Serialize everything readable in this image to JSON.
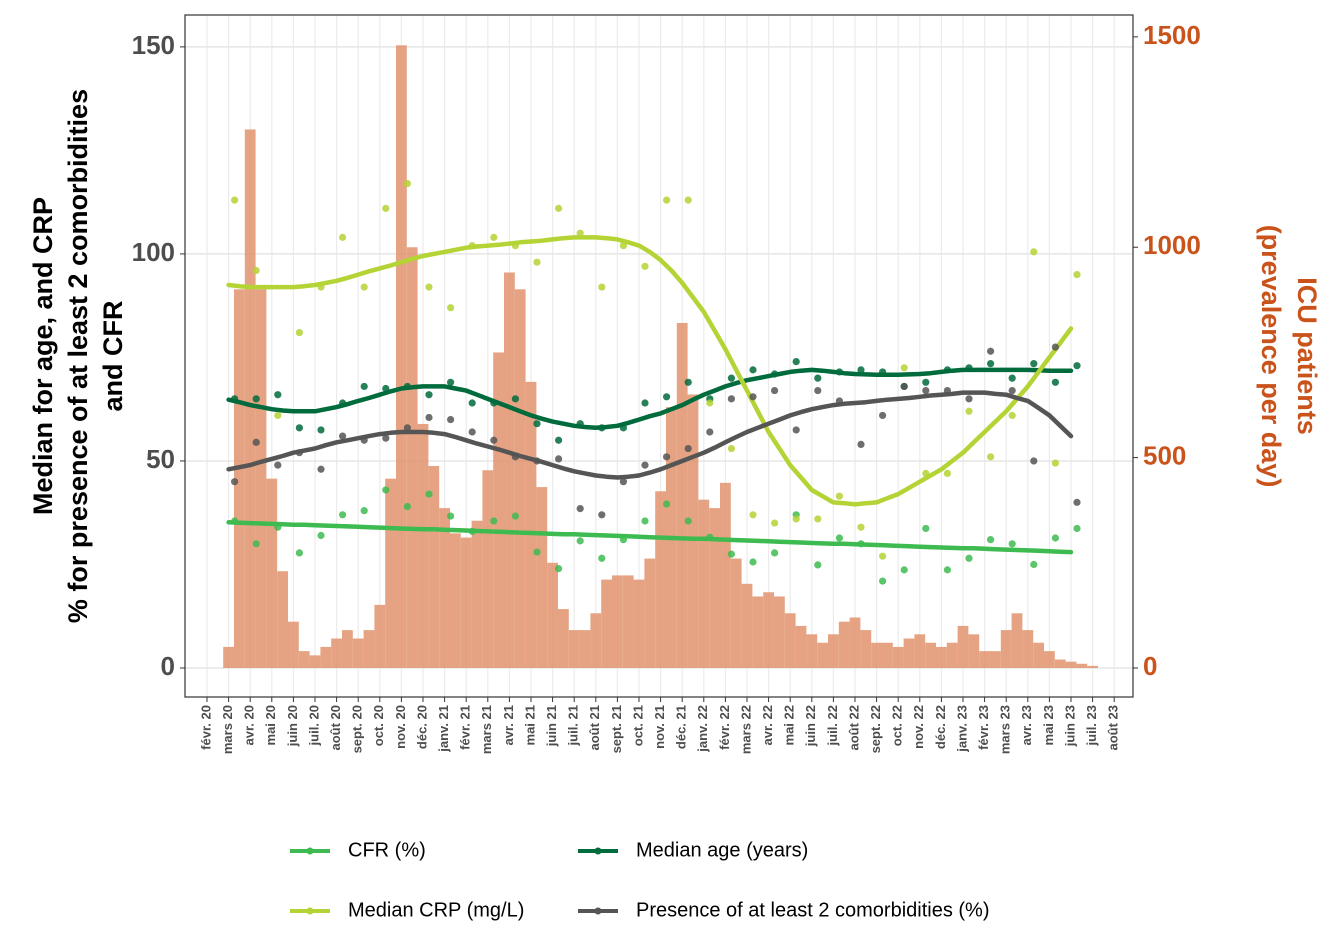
{
  "chart_data": {
    "type": "combo",
    "ylabel": [
      "Median for age, and CRP",
      "% for presence of at least 2 comorbidities",
      "and CFR"
    ],
    "y2label": [
      "ICU patients",
      "(prevalence per day)"
    ],
    "categories": [
      "févr. 20",
      null,
      "mars 20",
      null,
      "avr. 20",
      null,
      "mai 20",
      null,
      "juin 20",
      null,
      "juil. 20",
      null,
      "août 20",
      null,
      "sept. 20",
      null,
      "oct. 20",
      null,
      "nov. 20",
      null,
      "déc. 20",
      null,
      "janv. 21",
      null,
      "févr. 21",
      null,
      "mars 21",
      null,
      "avr. 21",
      null,
      "mai 21",
      null,
      "juin 21",
      null,
      "juil. 21",
      null,
      "août 21",
      null,
      "sept. 21",
      null,
      "oct. 21",
      null,
      "nov. 21",
      null,
      "déc. 21",
      null,
      "janv. 22",
      null,
      "févr. 22",
      null,
      "mars 22",
      null,
      "avr. 22",
      null,
      "mai 22",
      null,
      "juin 22",
      null,
      "juil. 22",
      null,
      "août 22",
      null,
      "sept. 22",
      null,
      "oct. 22",
      null,
      "nov. 22",
      null,
      "déc. 22",
      null,
      "janv. 23",
      null,
      "févr. 23",
      null,
      "mars 23",
      null,
      "avr. 23",
      null,
      "mai 23",
      null,
      "juin 23",
      null,
      "juil. 23",
      null,
      "août 23",
      null
    ],
    "ylim": [
      -7,
      157.7
    ],
    "yticks": [
      0,
      50,
      100,
      150
    ],
    "y2lim": [
      -69,
      1552
    ],
    "y2ticks": [
      0,
      500,
      1000,
      1500
    ],
    "grid": true,
    "legend": "bottom",
    "icu": {
      "color": "#e2936d",
      "axis": "y2",
      "values": [
        null,
        null,
        50,
        900,
        1280,
        900,
        450,
        230,
        110,
        40,
        30,
        50,
        70,
        90,
        70,
        90,
        150,
        450,
        1480,
        1000,
        580,
        480,
        380,
        320,
        310,
        350,
        470,
        750,
        940,
        900,
        680,
        430,
        250,
        140,
        90,
        90,
        130,
        210,
        220,
        220,
        210,
        260,
        420,
        620,
        820,
        650,
        400,
        380,
        440,
        260,
        200,
        170,
        180,
        170,
        130,
        100,
        80,
        60,
        80,
        110,
        120,
        90,
        60,
        60,
        50,
        70,
        80,
        60,
        50,
        60,
        100,
        80,
        40,
        40,
        90,
        130,
        90,
        60,
        40,
        20,
        15,
        10,
        5,
        null,
        null,
        null
      ]
    },
    "series": [
      {
        "name": "CFR (%)",
        "color": "#3dbb50",
        "values": [
          null,
          null,
          35.2,
          35.1,
          35.0,
          34.9,
          34.8,
          34.7,
          34.6,
          34.6,
          34.5,
          34.4,
          34.3,
          34.2,
          34.1,
          34.0,
          33.9,
          33.8,
          33.7,
          33.6,
          33.5,
          33.5,
          33.4,
          33.3,
          33.2,
          33.1,
          33.0,
          32.9,
          32.8,
          32.7,
          32.6,
          32.5,
          32.4,
          32.3,
          32.3,
          32.2,
          32.1,
          32.0,
          31.9,
          31.8,
          31.7,
          31.6,
          31.5,
          31.4,
          31.3,
          31.2,
          31.2,
          31.1,
          31.0,
          30.9,
          30.8,
          30.7,
          30.6,
          30.5,
          30.4,
          30.3,
          30.2,
          30.1,
          30.0,
          30.0,
          29.9,
          29.8,
          29.7,
          29.6,
          29.5,
          29.4,
          29.3,
          29.2,
          29.1,
          29.0,
          28.9,
          28.9,
          28.8,
          28.7,
          28.6,
          28.5,
          28.4,
          28.3,
          28.2,
          28.1,
          28.0,
          null,
          null,
          null,
          null,
          null
        ],
        "points": [
          null,
          null,
          35.5,
          null,
          30,
          null,
          34,
          null,
          27.8,
          null,
          32,
          null,
          37,
          null,
          38,
          null,
          43,
          null,
          39,
          null,
          42,
          null,
          36.7,
          null,
          33,
          null,
          35.5,
          null,
          36.7,
          null,
          28,
          null,
          24,
          null,
          30.7,
          null,
          26.5,
          null,
          31,
          null,
          35.5,
          null,
          39.6,
          null,
          35.5,
          null,
          31.6,
          null,
          27.5,
          null,
          25.6,
          null,
          27.8,
          null,
          37,
          null,
          24.9,
          null,
          31.4,
          null,
          30,
          null,
          21,
          null,
          23.7,
          null,
          33.7,
          null,
          23.7,
          null,
          26.5,
          null,
          31,
          null,
          30,
          null,
          25,
          null,
          31.4,
          null,
          33.7,
          null,
          null,
          null,
          null,
          null
        ]
      },
      {
        "name": "Median age (years)",
        "color": "#006b3c",
        "values": [
          null,
          null,
          64.8,
          64.2,
          63.5,
          63,
          62.5,
          62.2,
          62,
          62,
          62,
          62.5,
          63,
          63.7,
          64.5,
          65.2,
          66,
          66.8,
          67.5,
          67.8,
          68,
          68,
          68,
          67.5,
          67,
          66,
          65,
          64,
          63,
          62,
          61,
          60.2,
          59.5,
          59,
          58.5,
          58.2,
          58,
          58.2,
          58.5,
          59.2,
          60,
          60.8,
          61.5,
          62.5,
          63.5,
          64.8,
          66,
          67,
          68,
          68.8,
          69.5,
          70,
          70.5,
          71,
          71.5,
          71.8,
          72,
          71.8,
          71.5,
          71.2,
          71,
          70.9,
          70.8,
          70.8,
          70.8,
          70.9,
          71,
          71.2,
          71.5,
          71.8,
          72,
          72,
          72,
          72,
          72,
          72,
          72,
          71.9,
          71.8,
          71.8,
          71.8,
          null,
          null,
          null,
          null,
          null
        ],
        "points": [
          null,
          null,
          65,
          null,
          65,
          null,
          66,
          null,
          58,
          null,
          57.5,
          null,
          64,
          null,
          68,
          null,
          67.5,
          null,
          68,
          null,
          66,
          null,
          69,
          null,
          64,
          null,
          64,
          null,
          65,
          null,
          59,
          null,
          55,
          null,
          59,
          null,
          58,
          null,
          58,
          null,
          64,
          null,
          65.5,
          null,
          69,
          null,
          65,
          null,
          70,
          null,
          72,
          null,
          71,
          null,
          74,
          null,
          70,
          null,
          71.5,
          null,
          72,
          null,
          71.5,
          null,
          68,
          null,
          69,
          null,
          72,
          null,
          72.5,
          null,
          73.5,
          null,
          70,
          null,
          73.5,
          null,
          69,
          null,
          73,
          null,
          null,
          null,
          null,
          null
        ]
      },
      {
        "name": "Median CRP (mg/L)",
        "color": "#b4d334",
        "values": [
          null,
          null,
          92.5,
          92.2,
          92,
          92,
          92,
          92,
          92,
          92.2,
          92.5,
          93,
          93.5,
          94.2,
          95,
          95.8,
          96.5,
          97.2,
          98,
          98.8,
          99.5,
          100,
          100.5,
          101,
          101.5,
          101.8,
          102,
          102.2,
          102.5,
          102.8,
          103,
          103.2,
          103.5,
          103.8,
          104,
          104,
          104,
          103.8,
          103.5,
          102.8,
          102,
          100.5,
          98.5,
          96,
          93,
          89.5,
          86,
          81.5,
          77,
          72,
          67,
          62,
          57,
          53,
          49,
          46,
          43,
          41.5,
          40,
          39.8,
          39.5,
          39.8,
          40,
          41,
          42,
          43.5,
          45,
          46.5,
          48,
          50,
          52,
          54.5,
          57,
          59.5,
          62,
          65,
          68,
          71.5,
          75,
          78.5,
          82,
          null,
          null,
          null,
          null,
          null
        ],
        "points": [
          null,
          null,
          113,
          null,
          96,
          null,
          61,
          null,
          81,
          null,
          92,
          null,
          104,
          null,
          92,
          null,
          111,
          null,
          117,
          null,
          92,
          null,
          87,
          null,
          102,
          null,
          104,
          null,
          102,
          null,
          98,
          null,
          111,
          null,
          105,
          null,
          92,
          null,
          102,
          null,
          97,
          null,
          113,
          null,
          113,
          null,
          64,
          null,
          53,
          null,
          37,
          null,
          35,
          null,
          36,
          null,
          36,
          null,
          41.5,
          null,
          34,
          null,
          27,
          null,
          72.5,
          null,
          47,
          null,
          47,
          null,
          62,
          null,
          51,
          null,
          61,
          null,
          100.5,
          null,
          49.5,
          null,
          95,
          null,
          null,
          null,
          null,
          null
        ]
      },
      {
        "name": "Presence of at least 2 comorbidities (%)",
        "color": "#555555",
        "values": [
          null,
          null,
          48,
          48.5,
          49,
          49.8,
          50.5,
          51.2,
          52,
          52.5,
          53,
          53.8,
          54.5,
          55,
          55.5,
          56,
          56.5,
          56.8,
          57,
          57,
          57,
          56.8,
          56.5,
          55.8,
          55,
          54.2,
          53.5,
          52.8,
          52,
          51.2,
          50.5,
          49.8,
          49,
          48.2,
          47.5,
          47,
          46.5,
          46.2,
          46,
          46.2,
          46.5,
          47.2,
          48,
          49,
          50,
          51,
          52,
          53.2,
          54.5,
          55.8,
          57,
          58,
          59,
          60,
          61,
          61.8,
          62.5,
          63,
          63.5,
          63.8,
          64,
          64.2,
          64.5,
          64.8,
          65,
          65.2,
          65.5,
          65.8,
          66,
          66.2,
          66.5,
          66.5,
          66.5,
          66.2,
          66,
          65.2,
          64.5,
          62.8,
          61,
          58.5,
          56,
          null,
          null,
          null,
          null,
          null
        ],
        "points": [
          null,
          null,
          45,
          null,
          54.5,
          null,
          49,
          null,
          52,
          null,
          48,
          null,
          56,
          null,
          55,
          null,
          55.5,
          null,
          58,
          null,
          60.5,
          null,
          60,
          null,
          57,
          null,
          55,
          null,
          51,
          null,
          50,
          null,
          50.5,
          null,
          38.5,
          null,
          37,
          null,
          45,
          null,
          49,
          null,
          51,
          null,
          53,
          null,
          57,
          null,
          65,
          null,
          65.5,
          null,
          67,
          null,
          57.5,
          null,
          67,
          null,
          64.5,
          null,
          54,
          null,
          61,
          null,
          68,
          null,
          67,
          null,
          67,
          null,
          65,
          null,
          76.5,
          null,
          67,
          null,
          50,
          null,
          77.5,
          null,
          40,
          null,
          null,
          null,
          null,
          null
        ]
      }
    ]
  }
}
